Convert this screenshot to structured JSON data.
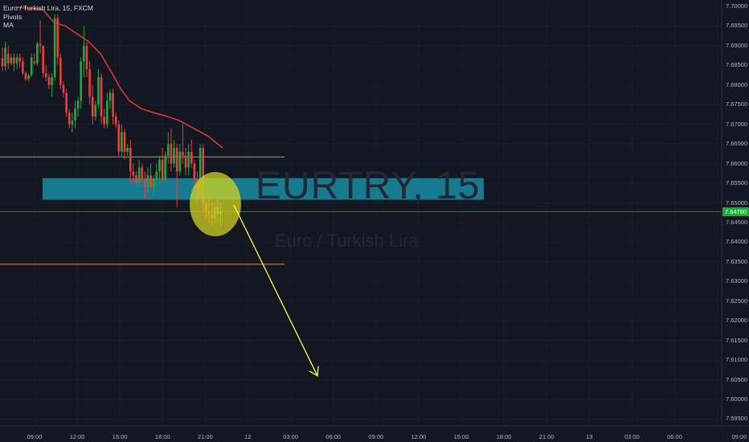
{
  "legend": {
    "symbol_line": "Euro / Turkish Lira, 15, FXCM",
    "pivots_label": "Pivots",
    "ma_label": "MA"
  },
  "watermark": {
    "ticker": "EURTRY, 15",
    "name": "Euro / Turkish Lira"
  },
  "price_axis": {
    "ticks": [
      "7.70000",
      "7.69500",
      "7.69000",
      "7.68500",
      "7.68000",
      "7.67500",
      "7.67000",
      "7.66500",
      "7.66000",
      "7.65500",
      "7.65000",
      "7.64500",
      "7.64000",
      "7.63500",
      "7.63000",
      "7.62500",
      "7.62000",
      "7.61500",
      "7.61000",
      "7.60500",
      "7.60000",
      "7.59500"
    ],
    "current_price": "7.64780"
  },
  "time_axis": {
    "ticks": [
      "09:00",
      "12:00",
      "15:00",
      "18:00",
      "21:00",
      "12",
      "03:00",
      "06:00",
      "09:00",
      "12:00",
      "15:00",
      "18:00",
      "21:00",
      "13",
      "03:00",
      "06:00",
      "09:00"
    ]
  },
  "colors": {
    "background": "#131722",
    "bull": "#26a640",
    "bear": "#ef3d3d",
    "ma_line": "#e53935",
    "zone": "#17a2b8",
    "pivot_line": "#e7873e",
    "current_price_line": "#26a640",
    "highlight": "#d8d81e",
    "arrow": "#ffff33"
  },
  "chart_data": {
    "type": "candlestick",
    "symbol": "EURTRY",
    "timeframe": "15",
    "ylim": [
      7.593,
      7.702
    ],
    "candles": [
      {
        "o": 7.6868,
        "h": 7.6895,
        "l": 7.6835,
        "c": 7.6848
      },
      {
        "o": 7.6848,
        "h": 7.691,
        "l": 7.6835,
        "c": 7.6895
      },
      {
        "o": 7.688,
        "h": 7.69,
        "l": 7.684,
        "c": 7.6855
      },
      {
        "o": 7.6855,
        "h": 7.688,
        "l": 7.685,
        "c": 7.687
      },
      {
        "o": 7.687,
        "h": 7.688,
        "l": 7.6835,
        "c": 7.6855
      },
      {
        "o": 7.6855,
        "h": 7.688,
        "l": 7.684,
        "c": 7.687
      },
      {
        "o": 7.687,
        "h": 7.688,
        "l": 7.6845,
        "c": 7.686
      },
      {
        "o": 7.686,
        "h": 7.687,
        "l": 7.6825,
        "c": 7.683
      },
      {
        "o": 7.683,
        "h": 7.6835,
        "l": 7.681,
        "c": 7.6815
      },
      {
        "o": 7.6815,
        "h": 7.683,
        "l": 7.681,
        "c": 7.6825
      },
      {
        "o": 7.6825,
        "h": 7.688,
        "l": 7.682,
        "c": 7.687
      },
      {
        "o": 7.686,
        "h": 7.688,
        "l": 7.685,
        "c": 7.6855
      },
      {
        "o": 7.6855,
        "h": 7.691,
        "l": 7.685,
        "c": 7.6905
      },
      {
        "o": 7.6905,
        "h": 7.6965,
        "l": 7.688,
        "c": 7.69
      },
      {
        "o": 7.69,
        "h": 7.69,
        "l": 7.682,
        "c": 7.683
      },
      {
        "o": 7.683,
        "h": 7.685,
        "l": 7.681,
        "c": 7.682
      },
      {
        "o": 7.682,
        "h": 7.683,
        "l": 7.679,
        "c": 7.68
      },
      {
        "o": 7.68,
        "h": 7.683,
        "l": 7.677,
        "c": 7.682
      },
      {
        "o": 7.682,
        "h": 7.698,
        "l": 7.681,
        "c": 7.697
      },
      {
        "o": 7.697,
        "h": 7.698,
        "l": 7.685,
        "c": 7.687
      },
      {
        "o": 7.687,
        "h": 7.688,
        "l": 7.679,
        "c": 7.68
      },
      {
        "o": 7.68,
        "h": 7.681,
        "l": 7.677,
        "c": 7.678
      },
      {
        "o": 7.678,
        "h": 7.679,
        "l": 7.672,
        "c": 7.673
      },
      {
        "o": 7.673,
        "h": 7.674,
        "l": 7.669,
        "c": 7.67
      },
      {
        "o": 7.67,
        "h": 7.673,
        "l": 7.668,
        "c": 7.671
      },
      {
        "o": 7.671,
        "h": 7.676,
        "l": 7.669,
        "c": 7.674
      },
      {
        "o": 7.674,
        "h": 7.677,
        "l": 7.672,
        "c": 7.676
      },
      {
        "o": 7.676,
        "h": 7.687,
        "l": 7.674,
        "c": 7.686
      },
      {
        "o": 7.686,
        "h": 7.695,
        "l": 7.682,
        "c": 7.69
      },
      {
        "o": 7.69,
        "h": 7.691,
        "l": 7.682,
        "c": 7.684
      },
      {
        "o": 7.684,
        "h": 7.686,
        "l": 7.675,
        "c": 7.677
      },
      {
        "o": 7.677,
        "h": 7.68,
        "l": 7.67,
        "c": 7.672
      },
      {
        "o": 7.672,
        "h": 7.676,
        "l": 7.671,
        "c": 7.675
      },
      {
        "o": 7.675,
        "h": 7.684,
        "l": 7.674,
        "c": 7.682
      },
      {
        "o": 7.682,
        "h": 7.683,
        "l": 7.67,
        "c": 7.672
      },
      {
        "o": 7.672,
        "h": 7.674,
        "l": 7.669,
        "c": 7.67
      },
      {
        "o": 7.67,
        "h": 7.678,
        "l": 7.669,
        "c": 7.676
      },
      {
        "o": 7.676,
        "h": 7.679,
        "l": 7.674,
        "c": 7.678
      },
      {
        "o": 7.678,
        "h": 7.679,
        "l": 7.67,
        "c": 7.672
      },
      {
        "o": 7.672,
        "h": 7.673,
        "l": 7.669,
        "c": 7.67
      },
      {
        "o": 7.67,
        "h": 7.671,
        "l": 7.662,
        "c": 7.663
      },
      {
        "o": 7.663,
        "h": 7.67,
        "l": 7.662,
        "c": 7.668
      },
      {
        "o": 7.668,
        "h": 7.669,
        "l": 7.661,
        "c": 7.663
      },
      {
        "o": 7.663,
        "h": 7.665,
        "l": 7.662,
        "c": 7.664
      },
      {
        "o": 7.664,
        "h": 7.666,
        "l": 7.655,
        "c": 7.658
      },
      {
        "o": 7.658,
        "h": 7.66,
        "l": 7.655,
        "c": 7.657
      },
      {
        "o": 7.657,
        "h": 7.658,
        "l": 7.654,
        "c": 7.655
      },
      {
        "o": 7.655,
        "h": 7.661,
        "l": 7.654,
        "c": 7.659
      },
      {
        "o": 7.659,
        "h": 7.66,
        "l": 7.655,
        "c": 7.656
      },
      {
        "o": 7.656,
        "h": 7.658,
        "l": 7.651,
        "c": 7.654
      },
      {
        "o": 7.654,
        "h": 7.659,
        "l": 7.652,
        "c": 7.657
      },
      {
        "o": 7.657,
        "h": 7.66,
        "l": 7.653,
        "c": 7.654
      },
      {
        "o": 7.654,
        "h": 7.657,
        "l": 7.652,
        "c": 7.656
      },
      {
        "o": 7.656,
        "h": 7.66,
        "l": 7.654,
        "c": 7.658
      },
      {
        "o": 7.658,
        "h": 7.662,
        "l": 7.656,
        "c": 7.661
      },
      {
        "o": 7.661,
        "h": 7.664,
        "l": 7.655,
        "c": 7.656
      },
      {
        "o": 7.656,
        "h": 7.663,
        "l": 7.655,
        "c": 7.662
      },
      {
        "o": 7.662,
        "h": 7.668,
        "l": 7.66,
        "c": 7.665
      },
      {
        "o": 7.665,
        "h": 7.669,
        "l": 7.658,
        "c": 7.66
      },
      {
        "o": 7.66,
        "h": 7.666,
        "l": 7.659,
        "c": 7.664
      },
      {
        "o": 7.664,
        "h": 7.665,
        "l": 7.649,
        "c": 7.658
      },
      {
        "o": 7.658,
        "h": 7.665,
        "l": 7.657,
        "c": 7.663
      },
      {
        "o": 7.663,
        "h": 7.67,
        "l": 7.66,
        "c": 7.662
      },
      {
        "o": 7.662,
        "h": 7.664,
        "l": 7.657,
        "c": 7.659
      },
      {
        "o": 7.659,
        "h": 7.665,
        "l": 7.657,
        "c": 7.663
      },
      {
        "o": 7.663,
        "h": 7.666,
        "l": 7.659,
        "c": 7.66
      },
      {
        "o": 7.66,
        "h": 7.661,
        "l": 7.654,
        "c": 7.656
      },
      {
        "o": 7.656,
        "h": 7.658,
        "l": 7.65,
        "c": 7.652
      },
      {
        "o": 7.652,
        "h": 7.665,
        "l": 7.651,
        "c": 7.664
      },
      {
        "o": 7.664,
        "h": 7.665,
        "l": 7.648,
        "c": 7.65
      },
      {
        "o": 7.65,
        "h": 7.652,
        "l": 7.646,
        "c": 7.648
      },
      {
        "o": 7.648,
        "h": 7.652,
        "l": 7.645,
        "c": 7.647
      },
      {
        "o": 7.647,
        "h": 7.65,
        "l": 7.644,
        "c": 7.646
      },
      {
        "o": 7.646,
        "h": 7.65,
        "l": 7.645,
        "c": 7.649
      },
      {
        "o": 7.649,
        "h": 7.651,
        "l": 7.645,
        "c": 7.647
      },
      {
        "o": 7.647,
        "h": 7.65,
        "l": 7.644,
        "c": 7.648
      }
    ],
    "moving_average": [
      [
        0,
        7.6998
      ],
      [
        9,
        7.6993
      ],
      [
        13,
        7.696
      ],
      [
        17,
        7.695
      ],
      [
        21,
        7.693
      ],
      [
        25,
        7.691
      ],
      [
        29,
        7.688
      ],
      [
        33,
        7.683
      ],
      [
        36,
        7.679
      ],
      [
        39,
        7.676
      ],
      [
        43,
        7.674
      ],
      [
        47,
        7.673
      ],
      [
        52,
        7.672
      ],
      [
        56,
        7.671
      ],
      [
        61,
        7.669
      ],
      [
        66,
        7.667
      ],
      [
        71,
        7.664
      ]
    ],
    "support_zone": {
      "from": 7.6508,
      "to": 7.6563
    },
    "pivot_levels": [
      7.6617,
      7.6344
    ],
    "current_price": 7.6478,
    "projection_target": 7.606
  }
}
